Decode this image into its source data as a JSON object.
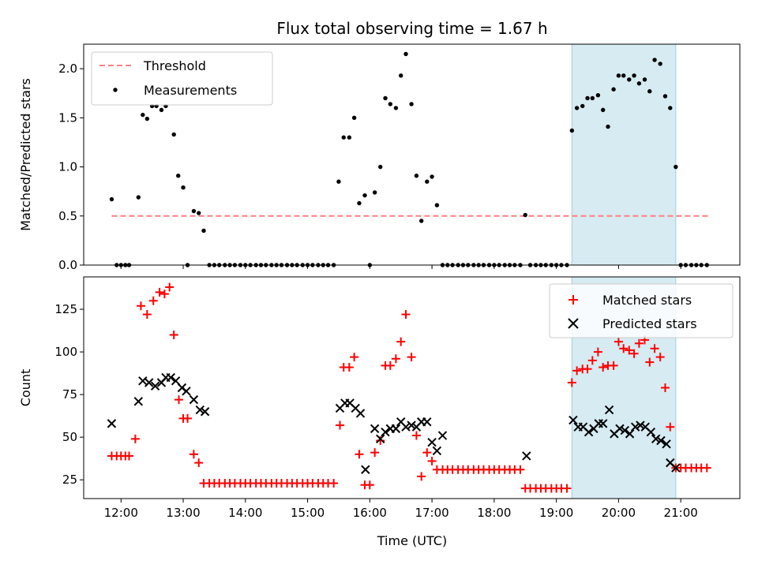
{
  "chart_data": [
    {
      "type": "scatter",
      "title": "Flux total observing time = 1.67 h",
      "xlabel": "",
      "ylabel": "Matched/Predicted stars",
      "xlim": [
        11.4,
        21.95
      ],
      "ylim": [
        0,
        2.25
      ],
      "yticks": [
        "0.0",
        "0.5",
        "1.0",
        "1.5",
        "2.0"
      ],
      "ytick_values": [
        0,
        0.5,
        1.0,
        1.5,
        2.0
      ],
      "highlight_span": [
        19.25,
        20.92
      ],
      "threshold": {
        "name": "Threshold",
        "value": 0.5,
        "x": [
          11.85,
          21.45
        ],
        "color": "#ff7f7f"
      },
      "series": [
        {
          "name": "Measurements",
          "color": "#000000",
          "marker": "dot",
          "x": [
            11.85,
            11.93,
            12.0,
            12.07,
            12.13,
            12.28,
            12.35,
            12.42,
            12.5,
            12.57,
            12.65,
            12.72,
            12.85,
            12.92,
            13.0,
            13.07,
            13.17,
            13.25,
            13.33,
            13.42,
            13.5,
            13.58,
            13.67,
            13.75,
            13.83,
            13.92,
            14.0,
            14.08,
            14.17,
            14.25,
            14.33,
            14.42,
            14.5,
            14.58,
            14.67,
            14.75,
            14.83,
            14.92,
            15.0,
            15.08,
            15.17,
            15.25,
            15.33,
            15.42,
            15.5,
            15.58,
            15.67,
            15.75,
            15.83,
            15.92,
            16.0,
            16.08,
            16.17,
            16.25,
            16.33,
            16.42,
            16.5,
            16.58,
            16.67,
            16.75,
            16.83,
            16.92,
            17.0,
            17.08,
            17.17,
            17.25,
            17.33,
            17.42,
            17.5,
            17.58,
            17.67,
            17.75,
            17.83,
            17.92,
            18.0,
            18.08,
            18.17,
            18.25,
            18.33,
            18.42,
            18.5,
            18.58,
            18.67,
            18.75,
            18.83,
            18.92,
            19.0,
            19.08,
            19.17,
            19.25,
            19.33,
            19.42,
            19.5,
            19.58,
            19.67,
            19.75,
            19.83,
            19.92,
            20.0,
            20.08,
            20.17,
            20.25,
            20.33,
            20.42,
            20.5,
            20.58,
            20.67,
            20.75,
            20.83,
            20.92,
            21.0,
            21.08,
            21.17,
            21.25,
            21.33,
            21.42
          ],
          "values": [
            0.67,
            0,
            0,
            0,
            0,
            0.69,
            1.53,
            1.49,
            1.62,
            1.62,
            1.58,
            1.62,
            1.33,
            0.91,
            0.79,
            0,
            0.55,
            0.53,
            0.35,
            0,
            0,
            0,
            0,
            0,
            0,
            0,
            0,
            0,
            0,
            0,
            0,
            0,
            0,
            0,
            0,
            0,
            0,
            0,
            0,
            0,
            0,
            0,
            0,
            0,
            0.85,
            1.3,
            1.3,
            1.5,
            0.63,
            0.71,
            0,
            0.74,
            1.0,
            1.7,
            1.64,
            1.6,
            1.93,
            2.15,
            1.64,
            0.91,
            0.45,
            0.85,
            0.9,
            0.61,
            0,
            0,
            0,
            0,
            0,
            0,
            0,
            0,
            0,
            0,
            0,
            0,
            0,
            0,
            0,
            0,
            0.51,
            0,
            0,
            0,
            0,
            0,
            0,
            0,
            0,
            1.37,
            1.6,
            1.62,
            1.7,
            1.7,
            1.73,
            1.58,
            1.41,
            1.79,
            1.93,
            1.93,
            1.89,
            1.93,
            1.85,
            1.89,
            1.77,
            2.09,
            2.05,
            1.72,
            1.6,
            1.0,
            0,
            0,
            0,
            0,
            0,
            0
          ]
        }
      ]
    },
    {
      "type": "scatter",
      "title": "",
      "xlabel": "Time (UTC)",
      "ylabel": "Count",
      "xlim": [
        11.4,
        21.95
      ],
      "ylim": [
        14,
        144
      ],
      "xticks": [
        "12:00",
        "13:00",
        "14:00",
        "15:00",
        "16:00",
        "17:00",
        "18:00",
        "19:00",
        "20:00",
        "21:00"
      ],
      "xtick_values": [
        12,
        13,
        14,
        15,
        16,
        17,
        18,
        19,
        20,
        21
      ],
      "yticks": [
        "25",
        "50",
        "75",
        "100",
        "125"
      ],
      "ytick_values": [
        25,
        50,
        75,
        100,
        125
      ],
      "highlight_span": [
        19.25,
        20.92
      ],
      "series": [
        {
          "name": "Matched stars",
          "color": "#ff0000",
          "marker": "plus",
          "x": [
            11.85,
            11.93,
            12.0,
            12.07,
            12.13,
            12.23,
            12.32,
            12.42,
            12.52,
            12.62,
            12.7,
            12.78,
            12.85,
            12.93,
            13.0,
            13.07,
            13.17,
            13.25,
            13.33,
            13.42,
            13.5,
            13.58,
            13.67,
            13.75,
            13.83,
            13.92,
            14.0,
            14.08,
            14.17,
            14.25,
            14.33,
            14.42,
            14.5,
            14.58,
            14.67,
            14.75,
            14.83,
            14.92,
            15.0,
            15.08,
            15.17,
            15.25,
            15.33,
            15.42,
            15.52,
            15.58,
            15.67,
            15.75,
            15.83,
            15.92,
            16.0,
            16.08,
            16.17,
            16.25,
            16.33,
            16.42,
            16.5,
            16.58,
            16.67,
            16.75,
            16.83,
            16.92,
            17.0,
            17.08,
            17.17,
            17.25,
            17.33,
            17.42,
            17.5,
            17.58,
            17.67,
            17.75,
            17.83,
            17.92,
            18.0,
            18.08,
            18.17,
            18.25,
            18.33,
            18.42,
            18.5,
            18.58,
            18.67,
            18.75,
            18.83,
            18.92,
            19.0,
            19.08,
            19.17,
            19.25,
            19.33,
            19.42,
            19.5,
            19.58,
            19.67,
            19.75,
            19.83,
            19.92,
            20.0,
            20.08,
            20.17,
            20.25,
            20.33,
            20.42,
            20.5,
            20.58,
            20.67,
            20.75,
            20.83,
            20.92,
            21.0,
            21.08,
            21.17,
            21.25,
            21.33,
            21.42
          ],
          "values": [
            39,
            39,
            39,
            39,
            39,
            49,
            127,
            122,
            130,
            135,
            134,
            138,
            110,
            72,
            61,
            61,
            40,
            35,
            23,
            23,
            23,
            23,
            23,
            23,
            23,
            23,
            23,
            23,
            23,
            23,
            23,
            23,
            23,
            23,
            23,
            23,
            23,
            23,
            23,
            23,
            23,
            23,
            23,
            23,
            57,
            91,
            91,
            97,
            40,
            22,
            22,
            41,
            48,
            92,
            92,
            96,
            106,
            122,
            97,
            51,
            27,
            41,
            36,
            31,
            31,
            31,
            31,
            31,
            31,
            31,
            31,
            31,
            31,
            31,
            31,
            31,
            31,
            31,
            31,
            31,
            20,
            20,
            20,
            20,
            20,
            20,
            20,
            20,
            20,
            82,
            89,
            90,
            90,
            95,
            100,
            91,
            92,
            92,
            106,
            102,
            101,
            99,
            105,
            107,
            94,
            102,
            97,
            79,
            56,
            32,
            32,
            32,
            32,
            32,
            32,
            32
          ]
        },
        {
          "name": "Predicted stars",
          "color": "#000000",
          "marker": "x",
          "x": [
            11.85,
            12.28,
            12.35,
            12.45,
            12.55,
            12.65,
            12.72,
            12.8,
            12.88,
            12.98,
            13.05,
            13.17,
            13.27,
            13.35,
            15.52,
            15.6,
            15.68,
            15.77,
            15.85,
            15.93,
            16.08,
            16.17,
            16.25,
            16.33,
            16.42,
            16.5,
            16.58,
            16.67,
            16.75,
            16.83,
            16.92,
            17.0,
            17.08,
            17.17,
            18.52,
            19.27,
            19.35,
            19.43,
            19.52,
            19.6,
            19.68,
            19.75,
            19.85,
            19.93,
            20.02,
            20.1,
            20.18,
            20.27,
            20.35,
            20.43,
            20.52,
            20.6,
            20.68,
            20.77,
            20.83,
            20.92
          ],
          "values": [
            58,
            71,
            83,
            82,
            80,
            82,
            85,
            85,
            83,
            79,
            77,
            72,
            66,
            65,
            67,
            70,
            70,
            67,
            64,
            31,
            55,
            49,
            53,
            55,
            55,
            59,
            56,
            57,
            56,
            59,
            59,
            47,
            42,
            51,
            39,
            60,
            56,
            56,
            53,
            55,
            58,
            58,
            66,
            52,
            55,
            54,
            52,
            56,
            57,
            56,
            53,
            49,
            48,
            46,
            35,
            32
          ]
        }
      ]
    }
  ]
}
